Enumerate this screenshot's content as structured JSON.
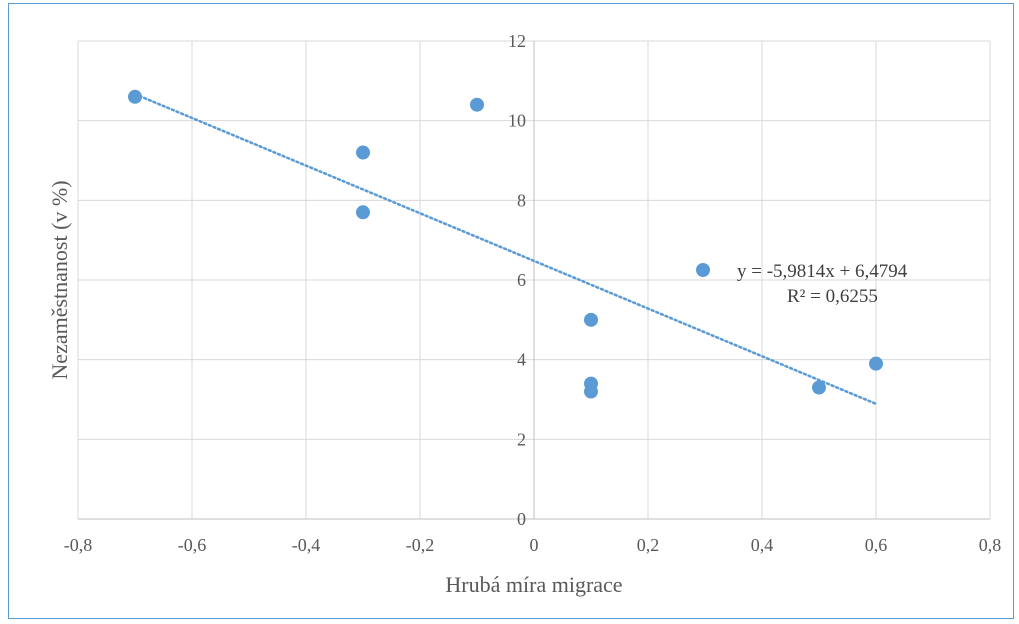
{
  "chart_data": {
    "type": "scatter",
    "title": "",
    "xlabel": "Hrubá míra migrace",
    "ylabel": "Nezaměstnanost (v %)",
    "xlim": [
      -0.8,
      0.8
    ],
    "ylim": [
      0,
      12
    ],
    "x_ticks": [
      "-0,8",
      "-0,6",
      "-0,4",
      "-0,2",
      "0",
      "0,2",
      "0,4",
      "0,6",
      "0,8"
    ],
    "x_tick_values": [
      -0.8,
      -0.6,
      -0.4,
      -0.2,
      0,
      0.2,
      0.4,
      0.6,
      0.8
    ],
    "y_ticks": [
      "0",
      "2",
      "4",
      "6",
      "8",
      "10",
      "12"
    ],
    "y_tick_values": [
      0,
      2,
      4,
      6,
      8,
      10,
      12
    ],
    "grid": true,
    "legend_position": "right",
    "series": [
      {
        "color": "#5b9bd5",
        "points": [
          {
            "x": -0.7,
            "y": 10.6
          },
          {
            "x": -0.3,
            "y": 9.2
          },
          {
            "x": -0.3,
            "y": 7.7
          },
          {
            "x": -0.1,
            "y": 10.4
          },
          {
            "x": 0.1,
            "y": 5.0
          },
          {
            "x": 0.1,
            "y": 3.4
          },
          {
            "x": 0.1,
            "y": 3.2
          },
          {
            "x": 0.5,
            "y": 3.3
          },
          {
            "x": 0.6,
            "y": 3.9
          }
        ]
      }
    ],
    "trendline": {
      "type": "linear",
      "slope": -5.9814,
      "intercept": 6.4794,
      "x_range": [
        -0.7,
        0.6
      ],
      "color": "#5b9bd5",
      "style": "dotted",
      "equation_label": "y = -5,9814x + 6,4794",
      "r2_label": "R² = 0,6255"
    }
  }
}
